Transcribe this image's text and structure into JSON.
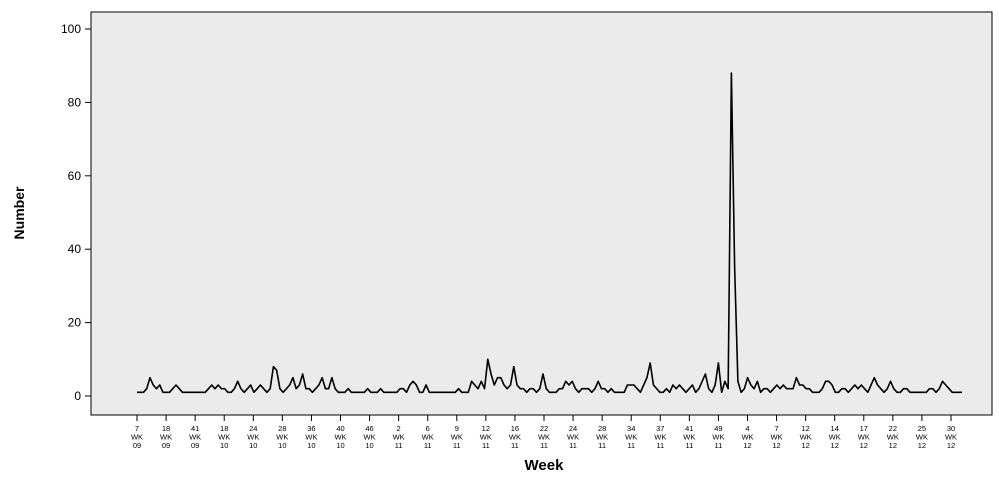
{
  "chart_data": {
    "type": "line",
    "title": "",
    "xlabel": "Week",
    "ylabel": "Number",
    "ylim": [
      0,
      105
    ],
    "yticks": [
      0,
      20,
      40,
      60,
      80,
      100
    ],
    "grid": false,
    "background": "#ebebeb",
    "line_color": "#000000",
    "xtick_labels": [
      [
        "7",
        "WK",
        "09"
      ],
      [
        "18",
        "WK",
        "09"
      ],
      [
        "41",
        "WK",
        "09"
      ],
      [
        "18",
        "WK",
        "10"
      ],
      [
        "24",
        "WK",
        "10"
      ],
      [
        "28",
        "WK",
        "10"
      ],
      [
        "36",
        "WK",
        "10"
      ],
      [
        "40",
        "WK",
        "10"
      ],
      [
        "46",
        "WK",
        "10"
      ],
      [
        "2",
        "WK",
        "11"
      ],
      [
        "6",
        "WK",
        "11"
      ],
      [
        "9",
        "WK",
        "11"
      ],
      [
        "12",
        "WK",
        "11"
      ],
      [
        "16",
        "WK",
        "11"
      ],
      [
        "22",
        "WK",
        "11"
      ],
      [
        "24",
        "WK",
        "11"
      ],
      [
        "28",
        "WK",
        "11"
      ],
      [
        "34",
        "WK",
        "11"
      ],
      [
        "37",
        "WK",
        "11"
      ],
      [
        "41",
        "WK",
        "11"
      ],
      [
        "49",
        "WK",
        "11"
      ],
      [
        "4",
        "WK",
        "12"
      ],
      [
        "7",
        "WK",
        "12"
      ],
      [
        "12",
        "WK",
        "12"
      ],
      [
        "14",
        "WK",
        "12"
      ],
      [
        "17",
        "WK",
        "12"
      ],
      [
        "22",
        "WK",
        "12"
      ],
      [
        "25",
        "WK",
        "12"
      ],
      [
        "30",
        "WK",
        "12"
      ]
    ],
    "series": [
      {
        "values": [
          1,
          1,
          1,
          2,
          5,
          3,
          2,
          3,
          1,
          1,
          1,
          2,
          3,
          2,
          1,
          1,
          1,
          1,
          1,
          1,
          1,
          1,
          2,
          3,
          2,
          3,
          2,
          2,
          1,
          1,
          2,
          4,
          2,
          1,
          2,
          3,
          1,
          2,
          3,
          2,
          1,
          2,
          8,
          7,
          2,
          1,
          2,
          3,
          5,
          2,
          3,
          6,
          2,
          2,
          1,
          2,
          3,
          5,
          2,
          2,
          5,
          2,
          1,
          1,
          1,
          2,
          1,
          1,
          1,
          1,
          1,
          2,
          1,
          1,
          1,
          2,
          1,
          1,
          1,
          1,
          1,
          2,
          2,
          1,
          3,
          4,
          3,
          1,
          1,
          3,
          1,
          1,
          1,
          1,
          1,
          1,
          1,
          1,
          1,
          2,
          1,
          1,
          1,
          4,
          3,
          2,
          4,
          2,
          10,
          6,
          3,
          5,
          5,
          3,
          2,
          3,
          8,
          3,
          2,
          2,
          1,
          2,
          2,
          1,
          2,
          6,
          2,
          1,
          1,
          1,
          2,
          2,
          4,
          3,
          4,
          2,
          1,
          2,
          2,
          2,
          1,
          2,
          4,
          2,
          2,
          1,
          2,
          1,
          1,
          1,
          1,
          3,
          3,
          3,
          2,
          1,
          3,
          5,
          9,
          3,
          2,
          1,
          1,
          2,
          1,
          3,
          2,
          3,
          2,
          1,
          2,
          3,
          1,
          2,
          4,
          6,
          2,
          1,
          3,
          9,
          1,
          4,
          2,
          88,
          35,
          4,
          1,
          2,
          5,
          3,
          2,
          4,
          1,
          2,
          2,
          1,
          2,
          3,
          2,
          3,
          2,
          2,
          2,
          5,
          3,
          3,
          2,
          2,
          1,
          1,
          1,
          2,
          4,
          4,
          3,
          1,
          1,
          2,
          2,
          1,
          2,
          3,
          2,
          3,
          2,
          1,
          3,
          5,
          3,
          2,
          1,
          2,
          4,
          2,
          1,
          1,
          2,
          2,
          1,
          1,
          1,
          1,
          1,
          1,
          2,
          2,
          1,
          2,
          4,
          3,
          2,
          1,
          1,
          1,
          1
        ]
      }
    ]
  }
}
